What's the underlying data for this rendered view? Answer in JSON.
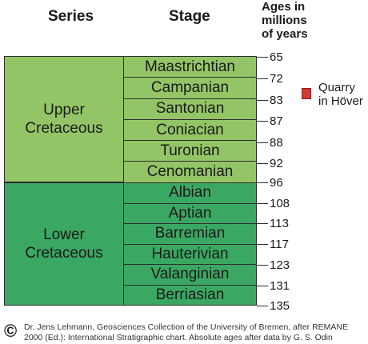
{
  "headers": {
    "series": "Series",
    "stage": "Stage",
    "ages": "Ages in\nmillions\nof years"
  },
  "upper": {
    "series_label": "Upper\nCretaceous",
    "stages": [
      "Maastrichtian",
      "Campanian",
      "Santonian",
      "Coniacian",
      "Turonian",
      "Cenomanian"
    ]
  },
  "lower": {
    "series_label": "Lower\nCretaceous",
    "stages": [
      "Albian",
      "Aptian",
      "Barremian",
      "Hauterivian",
      "Valanginian",
      "Berriasian"
    ]
  },
  "ages": [
    "65",
    "72",
    "83",
    "87",
    "88",
    "92",
    "96",
    "108",
    "113",
    "117",
    "123",
    "131",
    "135"
  ],
  "legend": {
    "label": "Quarry\nin Höver",
    "color": "#d33a3a"
  },
  "colors": {
    "upper_cretaceous": "#93c566",
    "lower_cretaceous": "#3aa862"
  },
  "credit": {
    "symbol": "©",
    "text": "Dr. Jens Lehmann, Geosciences Collection of the University of Bremen, after REMANE 2000 (Ed.): International Stratigraphic chart. Absolute ages after data by G. S. Odin"
  }
}
